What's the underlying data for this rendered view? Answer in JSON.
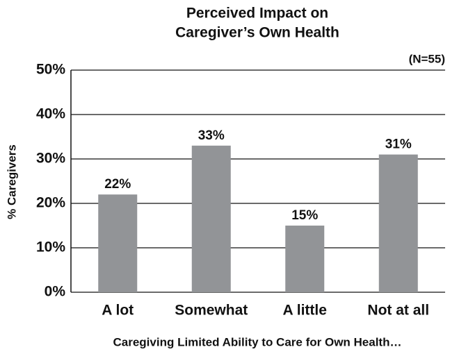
{
  "chart_data": {
    "type": "bar",
    "title": [
      "Perceived Impact on",
      "Caregiver’s Own Health"
    ],
    "annotation": "(N=55)",
    "ylabel": "% Caregivers",
    "xlabel": "Caregiving Limited Ability to Care for Own Health…",
    "categories": [
      "A lot",
      "Somewhat",
      "A little",
      "Not at all"
    ],
    "values": [
      22,
      33,
      15,
      31
    ],
    "value_labels": [
      "22%",
      "33%",
      "15%",
      "31%"
    ],
    "color": "#929497",
    "ylim": [
      0,
      50
    ],
    "yticks": [
      {
        "value": 0,
        "label": "0%"
      },
      {
        "value": 10,
        "label": "10%"
      },
      {
        "value": 20,
        "label": "20%"
      },
      {
        "value": 30,
        "label": "30%"
      },
      {
        "value": 40,
        "label": "40%"
      },
      {
        "value": 50,
        "label": "50%"
      }
    ],
    "grid": true
  }
}
